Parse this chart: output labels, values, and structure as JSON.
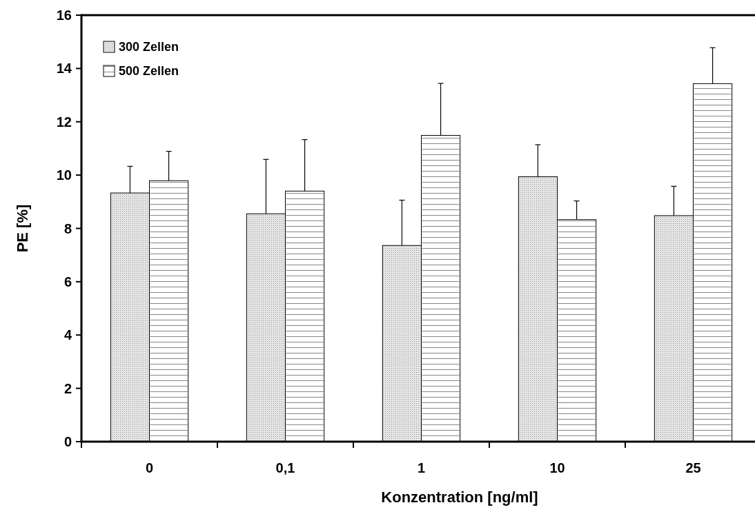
{
  "chart_data": {
    "type": "bar",
    "xlabel": "Konzentration [ng/ml]",
    "ylabel": "PE [%]",
    "categories": [
      "0",
      "0,1",
      "1",
      "10",
      "25"
    ],
    "series": [
      {
        "name": "300 Zellen",
        "color": "#e6e6e6",
        "values": [
          9.33,
          8.55,
          7.36,
          9.94,
          8.48
        ],
        "errors": [
          1.0,
          2.04,
          1.7,
          1.2,
          1.1
        ]
      },
      {
        "name": "500 Zellen",
        "color": "#ffffff",
        "values": [
          9.79,
          9.4,
          11.49,
          8.33,
          13.43
        ],
        "errors": [
          1.1,
          1.93,
          1.95,
          0.7,
          1.35
        ]
      }
    ],
    "ylim": [
      0,
      16
    ],
    "yticks": [
      0,
      2,
      4,
      6,
      8,
      10,
      12,
      14,
      16
    ],
    "grid": false,
    "legend": "top left"
  }
}
